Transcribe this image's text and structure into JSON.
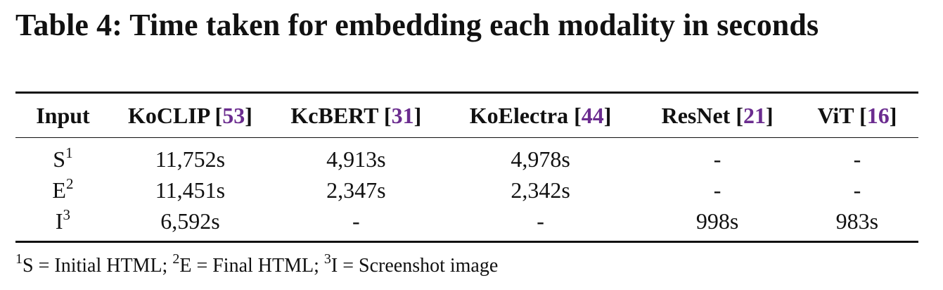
{
  "caption": "Table 4: Time taken for embedding each modality in seconds",
  "table": {
    "headers": [
      {
        "label": "Input",
        "ref": ""
      },
      {
        "label": "KoCLIP",
        "ref": "53"
      },
      {
        "label": "KcBERT",
        "ref": "31"
      },
      {
        "label": "KoElectra",
        "ref": "44"
      },
      {
        "label": "ResNet",
        "ref": "21"
      },
      {
        "label": "ViT",
        "ref": "16"
      }
    ],
    "rows": [
      {
        "input": "S",
        "sup": "1",
        "koclip": "11,752s",
        "kcbert": "4,913s",
        "koelectra": "4,978s",
        "resnet": "-",
        "vit": "-"
      },
      {
        "input": "E",
        "sup": "2",
        "koclip": "11,451s",
        "kcbert": "2,347s",
        "koelectra": "2,342s",
        "resnet": "-",
        "vit": "-"
      },
      {
        "input": "I",
        "sup": "3",
        "koclip": "6,592s",
        "kcbert": "-",
        "koelectra": "-",
        "resnet": "998s",
        "vit": "983s"
      }
    ]
  },
  "footnotes": [
    {
      "mark": "1",
      "text": "S = Initial HTML; "
    },
    {
      "mark": "2",
      "text": "E = Final HTML; "
    },
    {
      "mark": "3",
      "text": "I = Screenshot image"
    }
  ],
  "colors": {
    "text": "#111111",
    "reference_link": "#6b2c8f"
  }
}
